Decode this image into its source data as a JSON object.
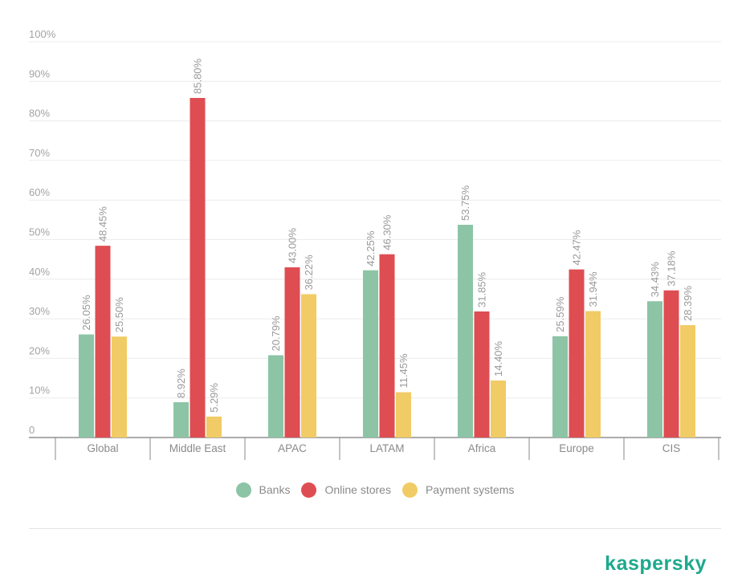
{
  "chart_data": {
    "type": "bar",
    "title": "",
    "xlabel": "",
    "ylabel": "",
    "ylim": [
      0,
      100
    ],
    "y_ticks": [
      0,
      10,
      20,
      30,
      40,
      50,
      60,
      70,
      80,
      90,
      100
    ],
    "y_tick_labels": [
      "0",
      "10%",
      "20%",
      "30%",
      "40%",
      "50%",
      "60%",
      "70%",
      "80%",
      "90%",
      "100%"
    ],
    "categories": [
      "Global",
      "Middle East",
      "APAC",
      "LATAM",
      "Africa",
      "Europe",
      "CIS"
    ],
    "series": [
      {
        "name": "Banks",
        "color": "#8cc4a5",
        "values": [
          26.05,
          8.92,
          20.79,
          42.25,
          53.75,
          25.59,
          34.43
        ],
        "labels": [
          "26.05%",
          "8.92%",
          "20.79%",
          "42.25%",
          "53.75%",
          "25.59%",
          "34.43%"
        ]
      },
      {
        "name": "Online stores",
        "color": "#de4d51",
        "values": [
          48.45,
          85.8,
          43.0,
          46.3,
          31.85,
          42.47,
          37.18
        ],
        "labels": [
          "48.45%",
          "85.80%",
          "43.00%",
          "46.30%",
          "31.85%",
          "42.47%",
          "37.18%"
        ]
      },
      {
        "name": "Payment systems",
        "color": "#f1cb65",
        "values": [
          25.5,
          5.29,
          36.22,
          11.45,
          14.4,
          31.94,
          28.39
        ],
        "labels": [
          "25.50%",
          "5.29%",
          "36.22%",
          "11.45%",
          "14.40%",
          "31.94%",
          "28.39%"
        ]
      }
    ],
    "legend_position": "bottom-center",
    "grid": true
  },
  "legend": {
    "items": [
      {
        "label": "Banks",
        "color": "#8cc4a5"
      },
      {
        "label": "Online stores",
        "color": "#de4d51"
      },
      {
        "label": "Payment systems",
        "color": "#f1cb65"
      }
    ]
  },
  "brand": {
    "name": "kaspersky",
    "color": "#1ea98d"
  }
}
